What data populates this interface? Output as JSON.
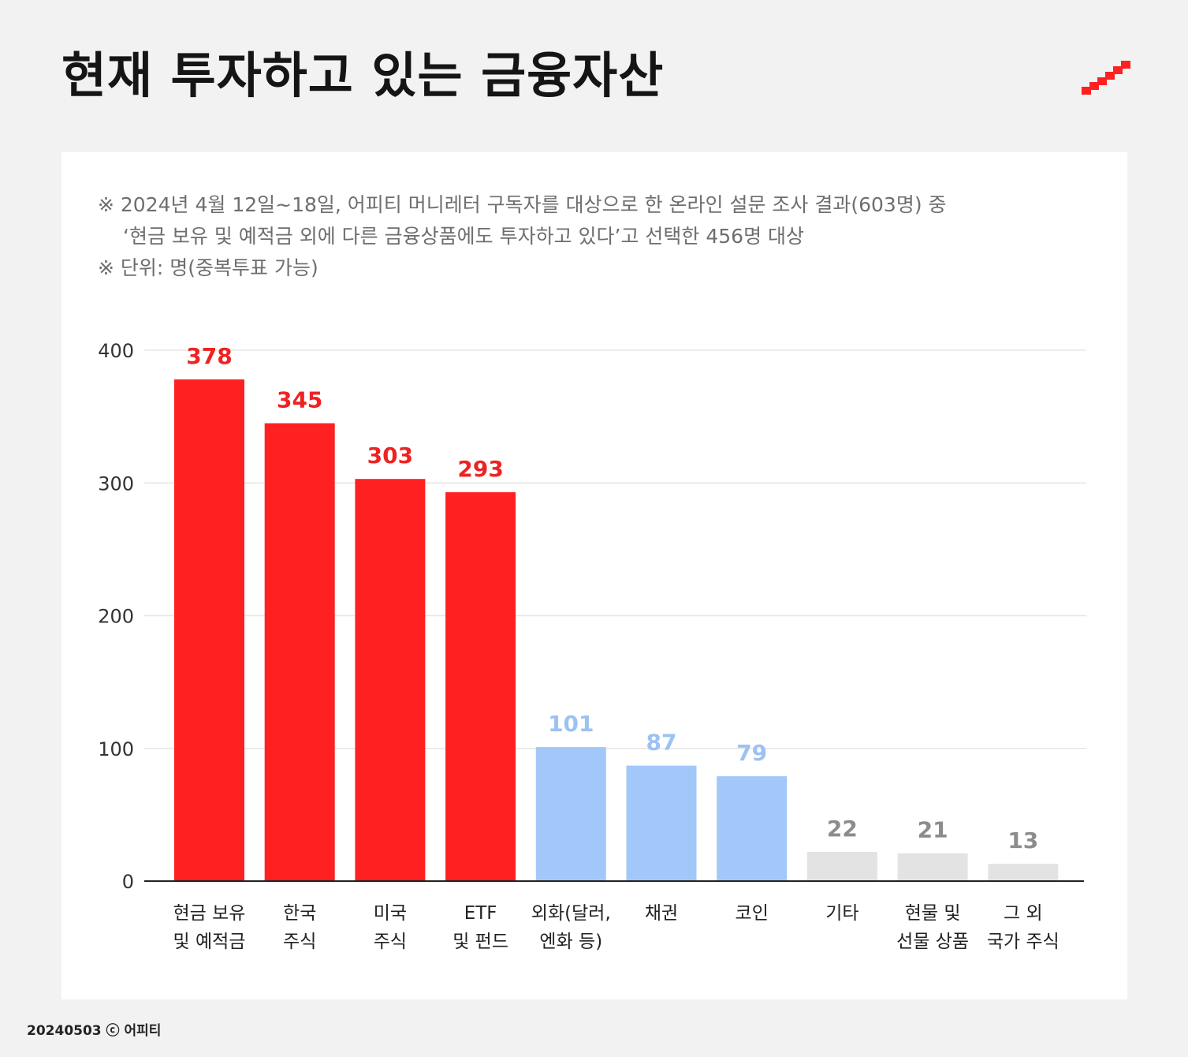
{
  "header": {
    "title": "현재 투자하고 있는 금융자산"
  },
  "notes": {
    "line1": "※ 2024년 4월 12일~18일, 어피티 머니레터 구독자를 대상으로 한 온라인 설문 조사 결과(603명) 중",
    "line2": "‘현금 보유 및 예적금 외에 다른 금융상품에도 투자하고 있다’고 선택한 456명 대상",
    "line3": "※ 단위: 명(중복투표 가능)"
  },
  "footer": {
    "credit": "20240503 ⓒ 어피티"
  },
  "colors": {
    "red": "#ff2121",
    "blue": "#a2c8fa",
    "gray": "#e3e3e3",
    "red_label": "#ee2222",
    "blue_label": "#9cc2f2",
    "gray_label": "#8c8c8c"
  },
  "chart_data": {
    "type": "bar",
    "title": "현재 투자하고 있는 금융자산",
    "ylabel": "명",
    "ylim": [
      0,
      400
    ],
    "yticks": [
      "0",
      "100",
      "200",
      "300",
      "400"
    ],
    "grid": true,
    "categories": [
      [
        "현금 보유",
        "및 예적금"
      ],
      [
        "한국",
        "주식"
      ],
      [
        "미국",
        "주식"
      ],
      [
        "ETF",
        "및 펀드"
      ],
      [
        "외화(달러,",
        "엔화 등)"
      ],
      [
        "채권"
      ],
      [
        "코인"
      ],
      [
        "기타"
      ],
      [
        "현물 및",
        "선물 상품"
      ],
      [
        "그 외",
        "국가 주식"
      ]
    ],
    "values": [
      378,
      345,
      303,
      293,
      101,
      87,
      79,
      22,
      21,
      13
    ],
    "color_groups": [
      "red",
      "red",
      "red",
      "red",
      "blue",
      "blue",
      "blue",
      "gray",
      "gray",
      "gray"
    ]
  }
}
